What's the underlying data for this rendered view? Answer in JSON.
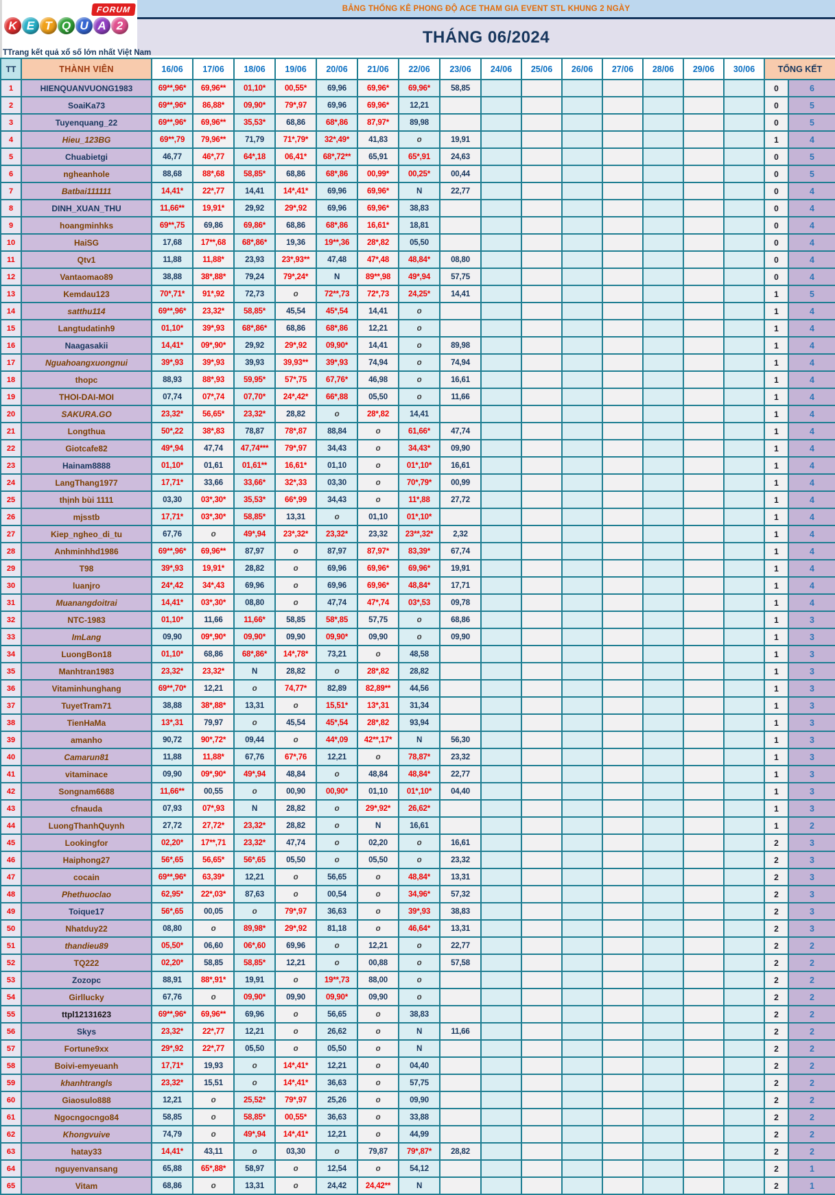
{
  "logo": {
    "letters": [
      "K",
      "E",
      "T",
      "Q",
      "U",
      "A",
      "2"
    ],
    "letter_colors": [
      "#e03030",
      "#28b0c8",
      "#f0a018",
      "#2f9f35",
      "#3566d2",
      "#9140c2",
      "#e0508e"
    ],
    "forum_label": "FORUM",
    "tagline": "TTrang kết quả xổ số lớn nhất Việt Nam"
  },
  "banner": {
    "title": "BẢNG THỐNG KÊ PHONG ĐỘ ACE THAM GIA EVENT STL KHUNG 2 NGÀY",
    "month": "THÁNG 06/2024"
  },
  "headers": {
    "tt": "TT",
    "member": "THÀNH VIÊN",
    "dates": [
      "16/06",
      "17/06",
      "18/06",
      "19/06",
      "20/06",
      "21/06",
      "22/06",
      "23/06",
      "24/06",
      "25/06",
      "26/06",
      "27/06",
      "28/06",
      "29/06",
      "30/06"
    ],
    "total": "TỔNG KẾT"
  },
  "theme": {
    "border": "#1e7e92",
    "banner1_bg": "#bdd7ee",
    "banner1_text": "#e36c0a",
    "banner2_bg": "#e1dfec",
    "navy": "#17365d",
    "red": "#f00000",
    "name_bg": "#cdbcdc",
    "col_cyan": "#daeef3",
    "col_gray": "#f2f1f2",
    "tk_bg": "#c5b4d6",
    "header_peach": "#f8cbad"
  },
  "rows": [
    {
      "tt": "1",
      "name": "HIENQUANVUONG1983",
      "ns": "b",
      "v": [
        "69**,96*",
        "69,96**",
        "01,10*",
        "00,55*",
        "69,96",
        "69,96*",
        "69,96*",
        "58,85"
      ],
      "tk": [
        "0",
        "6"
      ]
    },
    {
      "tt": "2",
      "name": "SoaiKa73",
      "ns": "b",
      "v": [
        "69**,96*",
        "86,88*",
        "09,90*",
        "79*,97",
        "69,96",
        "69,96*",
        "12,21",
        ""
      ],
      "tk": [
        "0",
        "5"
      ]
    },
    {
      "tt": "3",
      "name": "Tuyenquang_22",
      "ns": "b",
      "v": [
        "69**,96*",
        "69,96**",
        "35,53*",
        "68,86",
        "68*,86",
        "87,97*",
        "89,98",
        ""
      ],
      "tk": [
        "0",
        "5"
      ]
    },
    {
      "tt": "4",
      "name": "Hieu_123BG",
      "ns": "ri",
      "v": [
        "69**,79",
        "79,96**",
        "71,79",
        "71*,79*",
        "32*,49*",
        "41,83",
        "o",
        "19,91"
      ],
      "tk": [
        "1",
        "4"
      ]
    },
    {
      "tt": "5",
      "name": "Chuabietgi",
      "ns": "b",
      "v": [
        "46,77",
        "46*,77",
        "64*,18",
        "06,41*",
        "68*,72**",
        "65,91",
        "65*,91",
        "24,63"
      ],
      "tk": [
        "0",
        "5"
      ]
    },
    {
      "tt": "6",
      "name": "ngheanhole",
      "ns": "r",
      "v": [
        "88,68",
        "88*,68",
        "58,85*",
        "68,86",
        "68*,86",
        "00,99*",
        "00,25*",
        "00,44"
      ],
      "tk": [
        "0",
        "5"
      ]
    },
    {
      "tt": "7",
      "name": "Batbai111111",
      "ns": "ri",
      "v": [
        "14,41*",
        "22*,77",
        "14,41",
        "14*,41*",
        "69,96",
        "69,96*",
        "N",
        "22,77"
      ],
      "tk": [
        "0",
        "4"
      ]
    },
    {
      "tt": "8",
      "name": "DINH_XUAN_THU",
      "ns": "b",
      "v": [
        "11,66**",
        "19,91*",
        "29,92",
        "29*,92",
        "69,96",
        "69,96*",
        "38,83",
        ""
      ],
      "tk": [
        "0",
        "4"
      ]
    },
    {
      "tt": "9",
      "name": "hoangminhks",
      "ns": "r",
      "v": [
        "69**,75",
        "69,86",
        "69,86*",
        "68,86",
        "68*,86",
        "16,61*",
        "18,81",
        ""
      ],
      "tk": [
        "0",
        "4"
      ]
    },
    {
      "tt": "10",
      "name": "HaiSG",
      "ns": "r",
      "v": [
        "17,68",
        "17**,68",
        "68*,86*",
        "19,36",
        "19**,36",
        "28*,82",
        "05,50",
        ""
      ],
      "tk": [
        "0",
        "4"
      ]
    },
    {
      "tt": "11",
      "name": "Qtv1",
      "ns": "r",
      "v": [
        "11,88",
        "11,88*",
        "23,93",
        "23*,93**",
        "47,48",
        "47*,48",
        "48,84*",
        "08,80"
      ],
      "tk": [
        "0",
        "4"
      ]
    },
    {
      "tt": "12",
      "name": "Vantaomao89",
      "ns": "r",
      "v": [
        "38,88",
        "38*,88*",
        "79,24",
        "79*,24*",
        "N",
        "89**,98",
        "49*,94",
        "57,75"
      ],
      "tk": [
        "0",
        "4"
      ]
    },
    {
      "tt": "13",
      "name": "Kemdau123",
      "ns": "r",
      "v": [
        "70*,71*",
        "91*,92",
        "72,73",
        "o",
        "72**,73",
        "72*,73",
        "24,25*",
        "14,41"
      ],
      "tk": [
        "1",
        "5"
      ]
    },
    {
      "tt": "14",
      "name": "satthu114",
      "ns": "ri",
      "v": [
        "69**,96*",
        "23,32*",
        "58,85*",
        "45,54",
        "45*,54",
        "14,41",
        "o",
        ""
      ],
      "tk": [
        "1",
        "4"
      ]
    },
    {
      "tt": "15",
      "name": "Langtudatinh9",
      "ns": "r",
      "v": [
        "01,10*",
        "39*,93",
        "68*,86*",
        "68,86",
        "68*,86",
        "12,21",
        "o",
        ""
      ],
      "tk": [
        "1",
        "4"
      ]
    },
    {
      "tt": "16",
      "name": "Naagasakii",
      "ns": "b",
      "v": [
        "14,41*",
        "09*,90*",
        "29,92",
        "29*,92",
        "09,90*",
        "14,41",
        "o",
        "89,98"
      ],
      "tk": [
        "1",
        "4"
      ]
    },
    {
      "tt": "17",
      "name": "Nguahoangxuongnui",
      "ns": "ri",
      "v": [
        "39*,93",
        "39*,93",
        "39,93",
        "39,93**",
        "39*,93",
        "74,94",
        "o",
        "74,94"
      ],
      "tk": [
        "1",
        "4"
      ]
    },
    {
      "tt": "18",
      "name": "thopc",
      "ns": "r",
      "v": [
        "88,93",
        "88*,93",
        "59,95*",
        "57*,75",
        "67,76*",
        "46,98",
        "o",
        "16,61"
      ],
      "tk": [
        "1",
        "4"
      ]
    },
    {
      "tt": "19",
      "name": "THOI-DAI-MOI",
      "ns": "r",
      "v": [
        "07,74",
        "07*,74",
        "07,70*",
        "24*,42*",
        "66*,88",
        "05,50",
        "o",
        "11,66"
      ],
      "tk": [
        "1",
        "4"
      ]
    },
    {
      "tt": "20",
      "name": "SAKURA.GO",
      "ns": "ri",
      "v": [
        "23,32*",
        "56,65*",
        "23,32*",
        "28,82",
        "o",
        "28*,82",
        "14,41",
        ""
      ],
      "tk": [
        "1",
        "4"
      ]
    },
    {
      "tt": "21",
      "name": "Longthua",
      "ns": "r",
      "v": [
        "50*,22",
        "38*,83",
        "78,87",
        "78*,87",
        "88,84",
        "o",
        "61,66*",
        "47,74"
      ],
      "tk": [
        "1",
        "4"
      ]
    },
    {
      "tt": "22",
      "name": "Giotcafe82",
      "ns": "r",
      "v": [
        "49*,94",
        "47,74",
        "47,74***",
        "79*,97",
        "34,43",
        "o",
        "34,43*",
        "09,90"
      ],
      "tk": [
        "1",
        "4"
      ]
    },
    {
      "tt": "23",
      "name": "Hainam8888",
      "ns": "b",
      "v": [
        "01,10*",
        "01,61",
        "01,61**",
        "16,61*",
        "01,10",
        "o",
        "01*,10*",
        "16,61"
      ],
      "tk": [
        "1",
        "4"
      ]
    },
    {
      "tt": "24",
      "name": "LangThang1977",
      "ns": "r",
      "v": [
        "17,71*",
        "33,66",
        "33,66*",
        "32*,33",
        "03,30",
        "o",
        "70*,79*",
        "00,99"
      ],
      "tk": [
        "1",
        "4"
      ]
    },
    {
      "tt": "25",
      "name": "thịnh bùi 1111",
      "ns": "r",
      "v": [
        "03,30",
        "03*,30*",
        "35,53*",
        "66*,99",
        "34,43",
        "o",
        "11*,88",
        "27,72"
      ],
      "tk": [
        "1",
        "4"
      ]
    },
    {
      "tt": "26",
      "name": "mjsstb",
      "ns": "r",
      "v": [
        "17,71*",
        "03*,30*",
        "58,85*",
        "13,31",
        "o",
        "01,10",
        "01*,10*",
        ""
      ],
      "tk": [
        "1",
        "4"
      ]
    },
    {
      "tt": "27",
      "name": "Kiep_ngheo_di_tu",
      "ns": "r",
      "v": [
        "67,76",
        "o",
        "49*,94",
        "23*,32*",
        "23,32*",
        "23,32",
        "23**,32*",
        "2,32"
      ],
      "tk": [
        "1",
        "4"
      ]
    },
    {
      "tt": "28",
      "name": "Anhminhhd1986",
      "ns": "r",
      "v": [
        "69**,96*",
        "69,96**",
        "87,97",
        "o",
        "87,97",
        "87,97*",
        "83,39*",
        "67,74"
      ],
      "tk": [
        "1",
        "4"
      ]
    },
    {
      "tt": "29",
      "name": "T98",
      "ns": "r",
      "v": [
        "39*,93",
        "19,91*",
        "28,82",
        "o",
        "69,96",
        "69,96*",
        "69,96*",
        "19,91"
      ],
      "tk": [
        "1",
        "4"
      ]
    },
    {
      "tt": "30",
      "name": "luanjro",
      "ns": "r",
      "v": [
        "24*,42",
        "34*,43",
        "69,96",
        "o",
        "69,96",
        "69,96*",
        "48,84*",
        "17,71"
      ],
      "tk": [
        "1",
        "4"
      ]
    },
    {
      "tt": "31",
      "name": "Muanangdoitrai",
      "ns": "ri",
      "v": [
        "14,41*",
        "03*,30*",
        "08,80",
        "o",
        "47,74",
        "47*,74",
        "03*,53",
        "09,78"
      ],
      "tk": [
        "1",
        "4"
      ]
    },
    {
      "tt": "32",
      "name": "NTC-1983",
      "ns": "r",
      "v": [
        "01,10*",
        "11,66",
        "11,66*",
        "58,85",
        "58*,85",
        "57,75",
        "o",
        "68,86"
      ],
      "tk": [
        "1",
        "3"
      ]
    },
    {
      "tt": "33",
      "name": "ImLang",
      "ns": "ri",
      "v": [
        "09,90",
        "09*,90*",
        "09,90*",
        "09,90",
        "09,90*",
        "09,90",
        "o",
        "09,90"
      ],
      "tk": [
        "1",
        "3"
      ]
    },
    {
      "tt": "34",
      "name": "LuongBon18",
      "ns": "r",
      "v": [
        "01,10*",
        "68,86",
        "68*,86*",
        "14*,78*",
        "73,21",
        "o",
        "48,58",
        ""
      ],
      "tk": [
        "1",
        "3"
      ]
    },
    {
      "tt": "35",
      "name": "Manhtran1983",
      "ns": "r",
      "v": [
        "23,32*",
        "23,32*",
        "N",
        "28,82",
        "o",
        "28*,82",
        "28,82",
        ""
      ],
      "tk": [
        "1",
        "3"
      ]
    },
    {
      "tt": "36",
      "name": "Vitaminhunghang",
      "ns": "r",
      "v": [
        "69**,70*",
        "12,21",
        "o",
        "74,77*",
        "82,89",
        "82,89**",
        "44,56",
        ""
      ],
      "tk": [
        "1",
        "3"
      ]
    },
    {
      "tt": "37",
      "name": "TuyetTram71",
      "ns": "r",
      "v": [
        "38,88",
        "38*,88*",
        "13,31",
        "o",
        "15,51*",
        "13*,31",
        "31,34",
        ""
      ],
      "tk": [
        "1",
        "3"
      ]
    },
    {
      "tt": "38",
      "name": "TienHaMa",
      "ns": "r",
      "v": [
        "13*,31",
        "79,97",
        "o",
        "45,54",
        "45*,54",
        "28*,82",
        "93,94",
        ""
      ],
      "tk": [
        "1",
        "3"
      ]
    },
    {
      "tt": "39",
      "name": "amanho",
      "ns": "r",
      "v": [
        "90,72",
        "90*,72*",
        "09,44",
        "o",
        "44*,09",
        "42**,17*",
        "N",
        "56,30"
      ],
      "tk": [
        "1",
        "3"
      ]
    },
    {
      "tt": "40",
      "name": "Camarun81",
      "ns": "ri",
      "v": [
        "11,88",
        "11,88*",
        "67,76",
        "67*,76",
        "12,21",
        "o",
        "78,87*",
        "23,32"
      ],
      "tk": [
        "1",
        "3"
      ]
    },
    {
      "tt": "41",
      "name": "vitaminace",
      "ns": "r",
      "v": [
        "09,90",
        "09*,90*",
        "49*,94",
        "48,84",
        "o",
        "48,84",
        "48,84*",
        "22,77"
      ],
      "tk": [
        "1",
        "3"
      ]
    },
    {
      "tt": "42",
      "name": "Songnam6688",
      "ns": "r",
      "v": [
        "11,66**",
        "00,55",
        "o",
        "00,90",
        "00,90*",
        "01,10",
        "01*,10*",
        "04,40"
      ],
      "tk": [
        "1",
        "3"
      ]
    },
    {
      "tt": "43",
      "name": "cfnauda",
      "ns": "r",
      "v": [
        "07,93",
        "07*,93",
        "N",
        "28,82",
        "o",
        "29*,92*",
        "26,62*",
        ""
      ],
      "tk": [
        "1",
        "3"
      ]
    },
    {
      "tt": "44",
      "name": "LuongThanhQuynh",
      "ns": "r",
      "v": [
        "27,72",
        "27,72*",
        "23,32*",
        "28,82",
        "o",
        "N",
        "16,61",
        ""
      ],
      "tk": [
        "1",
        "2"
      ]
    },
    {
      "tt": "45",
      "name": "Lookingfor",
      "ns": "r",
      "v": [
        "02,20*",
        "17**,71",
        "23,32*",
        "47,74",
        "o",
        "02,20",
        "o",
        "16,61"
      ],
      "tk": [
        "2",
        "3"
      ]
    },
    {
      "tt": "46",
      "name": "Haiphong27",
      "ns": "r",
      "v": [
        "56*,65",
        "56,65*",
        "56*,65",
        "05,50",
        "o",
        "05,50",
        "o",
        "23,32"
      ],
      "tk": [
        "2",
        "3"
      ]
    },
    {
      "tt": "47",
      "name": "cocain",
      "ns": "r",
      "v": [
        "69**,96*",
        "63,39*",
        "12,21",
        "o",
        "56,65",
        "o",
        "48,84*",
        "13,31"
      ],
      "tk": [
        "2",
        "3"
      ]
    },
    {
      "tt": "48",
      "name": "Phethuoclao",
      "ns": "ri",
      "v": [
        "62,95*",
        "22*,03*",
        "87,63",
        "o",
        "00,54",
        "o",
        "34,96*",
        "57,32"
      ],
      "tk": [
        "2",
        "3"
      ]
    },
    {
      "tt": "49",
      "name": "Toique17",
      "ns": "b",
      "v": [
        "56*,65",
        "00,05",
        "o",
        "79*,97",
        "36,63",
        "o",
        "39*,93",
        "38,83"
      ],
      "tk": [
        "2",
        "3"
      ]
    },
    {
      "tt": "50",
      "name": "Nhatduy22",
      "ns": "r",
      "v": [
        "08,80",
        "o",
        "89,98*",
        "29*,92",
        "81,18",
        "o",
        "46,64*",
        "13,31"
      ],
      "tk": [
        "2",
        "3"
      ]
    },
    {
      "tt": "51",
      "name": "thandieu89",
      "ns": "ri",
      "v": [
        "05,50*",
        "06,60",
        "06*,60",
        "69,96",
        "o",
        "12,21",
        "o",
        "22,77"
      ],
      "tk": [
        "2",
        "2"
      ]
    },
    {
      "tt": "52",
      "name": "TQ222",
      "ns": "r",
      "v": [
        "02,20*",
        "58,85",
        "58,85*",
        "12,21",
        "o",
        "00,88",
        "o",
        "57,58"
      ],
      "tk": [
        "2",
        "2"
      ]
    },
    {
      "tt": "53",
      "name": "Zozopc",
      "ns": "b",
      "v": [
        "88,91",
        "88*,91*",
        "19,91",
        "o",
        "19**,73",
        "88,00",
        "o",
        ""
      ],
      "tk": [
        "2",
        "2"
      ]
    },
    {
      "tt": "54",
      "name": "Girllucky",
      "ns": "r",
      "v": [
        "67,76",
        "o",
        "09,90*",
        "09,90",
        "09,90*",
        "09,90",
        "o",
        ""
      ],
      "tk": [
        "2",
        "2"
      ]
    },
    {
      "tt": "55",
      "name": "ttpl12131623",
      "ns": "k",
      "v": [
        "69**,96*",
        "69,96**",
        "69,96",
        "o",
        "56,65",
        "o",
        "38,83",
        ""
      ],
      "tk": [
        "2",
        "2"
      ]
    },
    {
      "tt": "56",
      "name": "Skys",
      "ns": "b",
      "v": [
        "23,32*",
        "22*,77",
        "12,21",
        "o",
        "26,62",
        "o",
        "N",
        "11,66"
      ],
      "tk": [
        "2",
        "2"
      ]
    },
    {
      "tt": "57",
      "name": "Fortune9xx",
      "ns": "r",
      "v": [
        "29*,92",
        "22*,77",
        "05,50",
        "o",
        "05,50",
        "o",
        "N",
        ""
      ],
      "tk": [
        "2",
        "2"
      ]
    },
    {
      "tt": "58",
      "name": "Boivi-emyeuanh",
      "ns": "r",
      "v": [
        "17,71*",
        "19,93",
        "o",
        "14*,41*",
        "12,21",
        "o",
        "04,40",
        ""
      ],
      "tk": [
        "2",
        "2"
      ]
    },
    {
      "tt": "59",
      "name": "khanhtrangls",
      "ns": "ri",
      "v": [
        "23,32*",
        "15,51",
        "o",
        "14*,41*",
        "36,63",
        "o",
        "57,75",
        ""
      ],
      "tk": [
        "2",
        "2"
      ]
    },
    {
      "tt": "60",
      "name": "Giaosulo888",
      "ns": "r",
      "v": [
        "12,21",
        "o",
        "25,52*",
        "79*,97",
        "25,26",
        "o",
        "09,90",
        ""
      ],
      "tk": [
        "2",
        "2"
      ]
    },
    {
      "tt": "61",
      "name": "Ngocngocngo84",
      "ns": "r",
      "v": [
        "58,85",
        "o",
        "58,85*",
        "00,55*",
        "36,63",
        "o",
        "33,88",
        ""
      ],
      "tk": [
        "2",
        "2"
      ]
    },
    {
      "tt": "62",
      "name": "Khongvuive",
      "ns": "ri",
      "v": [
        "74,79",
        "o",
        "49*,94",
        "14*,41*",
        "12,21",
        "o",
        "44,99",
        ""
      ],
      "tk": [
        "2",
        "2"
      ]
    },
    {
      "tt": "63",
      "name": "hatay33",
      "ns": "r",
      "v": [
        "14,41*",
        "43,11",
        "o",
        "03,30",
        "o",
        "79,87",
        "79*,87*",
        "28,82"
      ],
      "tk": [
        "2",
        "2"
      ]
    },
    {
      "tt": "64",
      "name": "nguyenvansang",
      "ns": "r",
      "v": [
        "65,88",
        "65*,88*",
        "58,97",
        "o",
        "12,54",
        "o",
        "54,12",
        ""
      ],
      "tk": [
        "2",
        "1"
      ]
    },
    {
      "tt": "65",
      "name": "Vitam",
      "ns": "r",
      "v": [
        "68,86",
        "o",
        "13,31",
        "o",
        "24,42",
        "24,42**",
        "N",
        ""
      ],
      "tk": [
        "2",
        "1"
      ]
    }
  ]
}
